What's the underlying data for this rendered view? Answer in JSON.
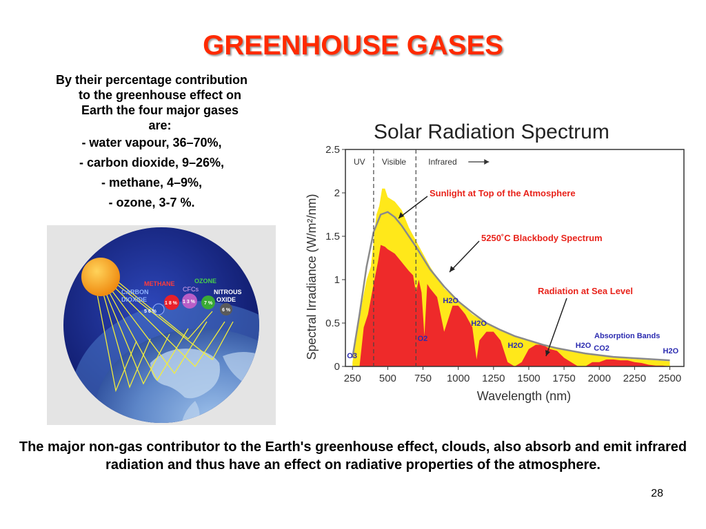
{
  "slide": {
    "title": "GREENHOUSE GASES",
    "intro_lines": [
      "By their percentage contribution to the greenhouse effect on Earth the four major gases are:"
    ],
    "gases": [
      "- water vapour, 36–70%,",
      "- carbon dioxide, 9–26%,",
      "- methane, 4–9%,",
      "- ozone, 3-7 %."
    ],
    "bottom_text": "The major non-gas contributor to the Earth's greenhouse effect, clouds, also absorb and emit infrared radiation and thus have an effect on radiative properties of the atmosphere.",
    "page_number": "28"
  },
  "earth_figure": {
    "labels": {
      "methane": "METHANE",
      "ozone": "OZONE",
      "cfcs": "CFCs",
      "carbon_dioxide_1": "CARBON",
      "carbon_dioxide_2": "DIOXIDE",
      "nitrous_1": "NITROUS",
      "nitrous_2": "OXIDE"
    },
    "percentages": {
      "co2": "5 6 %",
      "methane": "1 8 %",
      "cfcs": "1 3 %",
      "ozone": "7 %",
      "nitrous": "6 %"
    },
    "colors": {
      "sun": "#f7a21b",
      "space": "#1c2c8c",
      "methane_ball": "#e8202a",
      "cfc_ball": "#b85ec7",
      "ozone_ball": "#3aaa35",
      "nitrous_ball": "#5a5a5a",
      "co2_ball": "#2b4fb8",
      "rays": "#f4ee3a"
    }
  },
  "chart_data": {
    "type": "area",
    "title": "Solar Radiation Spectrum",
    "xlabel": "Wavelength (nm)",
    "ylabel": "Spectral Irradiance (W/m²/nm)",
    "xlim": [
      200,
      2600
    ],
    "ylim": [
      0,
      2.5
    ],
    "x_ticks": [
      250,
      500,
      750,
      1000,
      1250,
      1500,
      1750,
      2000,
      2250,
      2500
    ],
    "y_ticks": [
      0,
      0.5,
      1,
      1.5,
      2,
      2.5
    ],
    "x_tick_labels": [
      "250",
      "500",
      "750",
      "1000",
      "1250",
      "1500",
      "1750",
      "2000",
      "2250",
      "2500"
    ],
    "y_tick_labels": [
      "0",
      "0.5",
      "1",
      "1.5",
      "2",
      "2.5"
    ],
    "regions": [
      {
        "label": "UV",
        "boundary": 400
      },
      {
        "label": "Visible",
        "boundary": 700
      },
      {
        "label": "Infrared"
      }
    ],
    "series": [
      {
        "name": "Sunlight at Top of the Atmosphere",
        "color": "#ffe81a",
        "x": [
          250,
          280,
          300,
          320,
          350,
          380,
          400,
          420,
          440,
          460,
          480,
          500,
          550,
          600,
          650,
          700,
          750,
          800,
          900,
          1000,
          1100,
          1200,
          1300,
          1400,
          1500,
          1600,
          1700,
          1800,
          1900,
          2000,
          2100,
          2200,
          2300,
          2400,
          2500
        ],
        "values": [
          0.05,
          0.35,
          0.55,
          0.75,
          1.0,
          1.15,
          1.45,
          1.75,
          1.85,
          2.05,
          2.05,
          1.95,
          1.9,
          1.8,
          1.6,
          1.45,
          1.3,
          1.15,
          0.9,
          0.75,
          0.6,
          0.5,
          0.42,
          0.35,
          0.3,
          0.25,
          0.22,
          0.18,
          0.16,
          0.13,
          0.11,
          0.09,
          0.08,
          0.07,
          0.06
        ]
      },
      {
        "name": "5250°C Blackbody Spectrum",
        "color": "#8a8a8a",
        "x": [
          250,
          300,
          350,
          400,
          450,
          500,
          550,
          600,
          700,
          800,
          900,
          1000,
          1100,
          1200,
          1300,
          1400,
          1500,
          1600,
          1700,
          1800,
          1900,
          2000,
          2100,
          2200,
          2300,
          2400,
          2500
        ],
        "values": [
          0.1,
          0.6,
          1.15,
          1.55,
          1.75,
          1.78,
          1.72,
          1.62,
          1.38,
          1.12,
          0.92,
          0.75,
          0.62,
          0.5,
          0.42,
          0.35,
          0.3,
          0.25,
          0.21,
          0.18,
          0.15,
          0.13,
          0.11,
          0.1,
          0.09,
          0.08,
          0.07
        ]
      },
      {
        "name": "Radiation at Sea Level",
        "color": "#ee2a2a",
        "x": [
          300,
          330,
          360,
          400,
          430,
          450,
          480,
          500,
          550,
          600,
          650,
          680,
          700,
          720,
          740,
          760,
          780,
          800,
          850,
          900,
          930,
          960,
          1000,
          1050,
          1100,
          1130,
          1150,
          1200,
          1250,
          1300,
          1350,
          1400,
          1450,
          1500,
          1550,
          1600,
          1650,
          1700,
          1750,
          1800,
          1850,
          1900,
          1950,
          2000,
          2050,
          2100,
          2150,
          2200,
          2250,
          2300,
          2350,
          2400,
          2450,
          2500
        ],
        "values": [
          0.0,
          0.45,
          0.6,
          0.95,
          1.2,
          1.4,
          1.38,
          1.35,
          1.3,
          1.2,
          1.1,
          1.05,
          0.85,
          1.0,
          0.85,
          0.35,
          0.95,
          0.9,
          0.8,
          0.4,
          0.55,
          0.7,
          0.7,
          0.6,
          0.45,
          0.08,
          0.3,
          0.4,
          0.4,
          0.3,
          0.05,
          0.0,
          0.05,
          0.2,
          0.25,
          0.25,
          0.2,
          0.18,
          0.1,
          0.05,
          0.0,
          0.0,
          0.05,
          0.05,
          0.08,
          0.08,
          0.07,
          0.07,
          0.05,
          0.04,
          0.02,
          0.01,
          0.01,
          0.0
        ]
      }
    ],
    "annotations": [
      {
        "text": "Sunlight at Top of the Atmosphere",
        "color": "#e8231b"
      },
      {
        "text": "5250˚C Blackbody Spectrum",
        "color": "#e8231b"
      },
      {
        "text": "Radiation at Sea Level",
        "color": "#e8231b"
      },
      {
        "text": "Absorption Bands",
        "color": "#2b2bb0"
      }
    ],
    "absorption_labels": [
      {
        "text": "O3",
        "x": 260
      },
      {
        "text": "O2",
        "x": 760
      },
      {
        "text": "H2O",
        "x": 940
      },
      {
        "text": "H2O",
        "x": 1140
      },
      {
        "text": "H2O",
        "x": 1400
      },
      {
        "text": "H2O",
        "x": 1880
      },
      {
        "text": "CO2",
        "x": 2010
      },
      {
        "text": "H2O",
        "x": 2500
      }
    ]
  }
}
